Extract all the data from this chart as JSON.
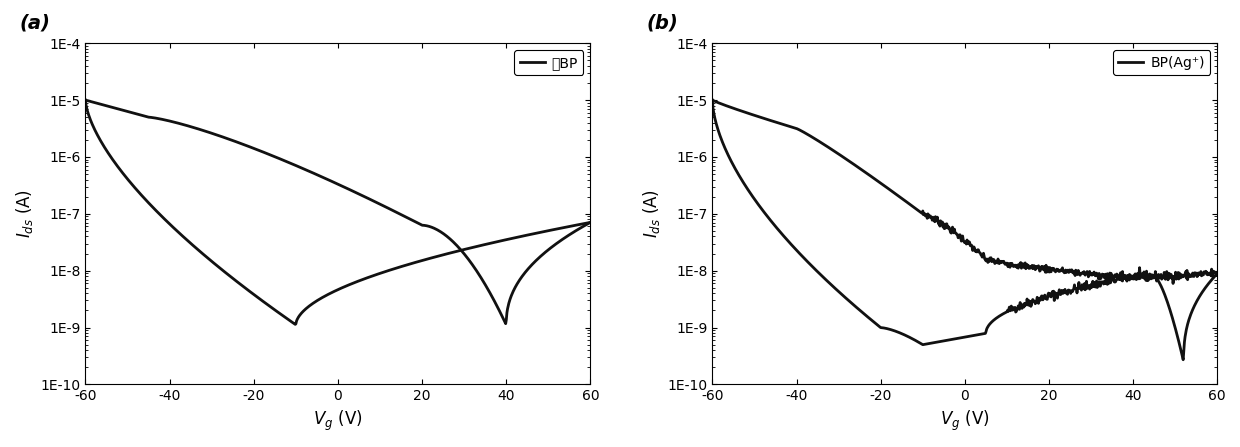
{
  "xlim": [
    -60,
    60
  ],
  "ylim_log": [
    -10,
    -4
  ],
  "panel_a_label": "(a)",
  "panel_b_label": "(b)",
  "legend_a": "纯BP",
  "legend_b": "BP(Ag⁺)",
  "line_color": "#111111",
  "line_width": 2.0,
  "bg_color": "#ffffff",
  "font_size_labels": 12,
  "font_size_ticks": 10,
  "font_size_panel": 14,
  "ytick_labels": [
    "1E-10",
    "1E-9",
    "1E-8",
    "1E-7",
    "1E-6",
    "1E-5",
    "1E-4"
  ],
  "xtick_labels": [
    "-60",
    "-40",
    "-20",
    "0",
    "20",
    "40",
    "60"
  ],
  "xtick_vals": [
    -60,
    -40,
    -20,
    0,
    20,
    40,
    60
  ]
}
